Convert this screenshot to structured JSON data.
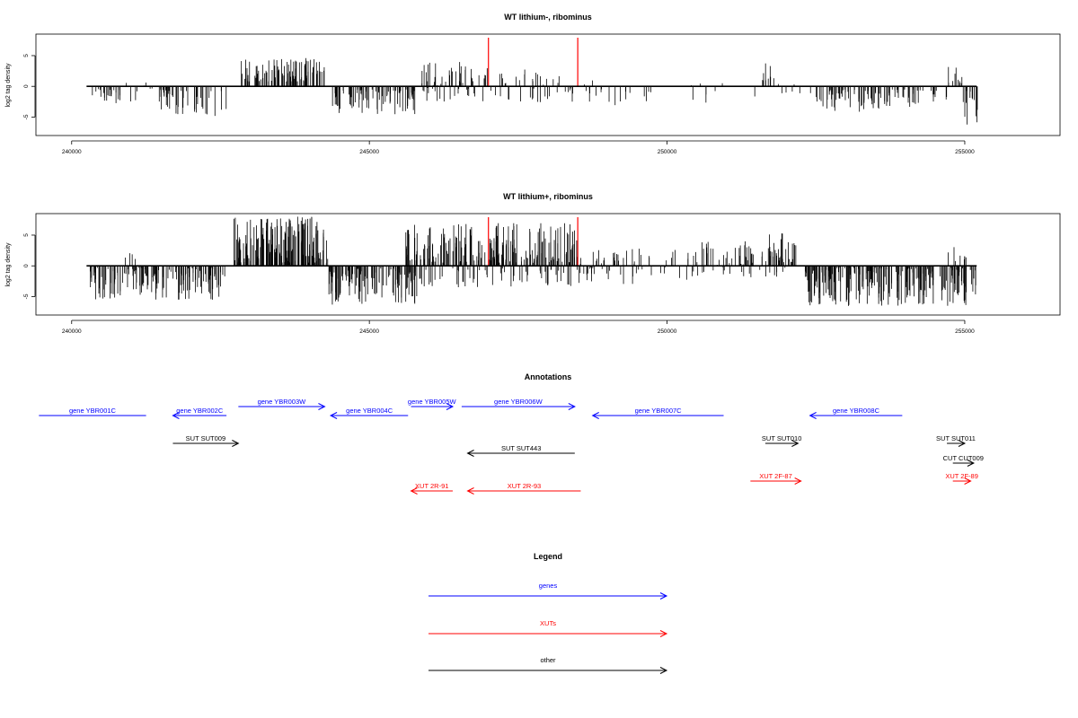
{
  "chart_data": [
    {
      "type": "bar",
      "title": "WT lithium-, ribominus",
      "xlabel": "",
      "ylabel": "log2 tag density",
      "xlim": [
        239400,
        256600
      ],
      "ylim": [
        -8,
        8.5
      ],
      "x_ticks": [
        240000,
        245000,
        250000,
        255000
      ],
      "x_tick_labels": [
        "240000",
        "245000",
        "250000",
        "255000"
      ],
      "y_ticks": [
        -5,
        0,
        5
      ],
      "y_tick_labels": [
        "-5",
        "0",
        "5"
      ],
      "baseline": {
        "from": 240250,
        "to": 255200,
        "y": 0
      },
      "highlight_positions": [
        247000,
        248500
      ],
      "highlight_color": "#ff0000",
      "bar_color": "#000000",
      "segments": [
        {
          "start": 240300,
          "end": 240900,
          "n": 22,
          "min": -2.8,
          "max": -0.4,
          "seed": 11
        },
        {
          "start": 240900,
          "end": 241500,
          "n": 10,
          "min": -2.5,
          "max": 0.8,
          "seed": 12
        },
        {
          "start": 241450,
          "end": 242600,
          "n": 46,
          "min": -5.0,
          "max": -0.5,
          "seed": 13
        },
        {
          "start": 242850,
          "end": 244250,
          "n": 95,
          "min": 0.8,
          "max": 4.6,
          "seed": 14
        },
        {
          "start": 244350,
          "end": 245800,
          "n": 85,
          "min": -4.6,
          "max": -0.5,
          "seed": 15
        },
        {
          "start": 245800,
          "end": 246800,
          "n": 55,
          "min": -2.5,
          "max": 4.0,
          "seed": 16
        },
        {
          "start": 246800,
          "end": 248500,
          "n": 50,
          "min": -2.8,
          "max": 3.2,
          "seed": 17
        },
        {
          "start": 248500,
          "end": 249500,
          "n": 16,
          "min": -3.5,
          "max": 1.5,
          "seed": 18
        },
        {
          "start": 249500,
          "end": 251500,
          "n": 12,
          "min": -3.0,
          "max": 1.2,
          "seed": 19
        },
        {
          "start": 251550,
          "end": 251800,
          "n": 9,
          "min": 0.6,
          "max": 3.9,
          "seed": 20
        },
        {
          "start": 251800,
          "end": 252500,
          "n": 8,
          "min": -2.0,
          "max": 0.6,
          "seed": 21
        },
        {
          "start": 252500,
          "end": 254700,
          "n": 95,
          "min": -4.2,
          "max": -0.5,
          "seed": 22
        },
        {
          "start": 254700,
          "end": 255000,
          "n": 10,
          "min": 0.5,
          "max": 3.2,
          "seed": 23
        },
        {
          "start": 254950,
          "end": 255220,
          "n": 14,
          "min": -6.5,
          "max": -0.5,
          "seed": 24
        }
      ]
    },
    {
      "type": "bar",
      "title": "WT lithium+, ribominus",
      "xlabel": "",
      "ylabel": "log2 tag density",
      "xlim": [
        239400,
        256600
      ],
      "ylim": [
        -8,
        8.5
      ],
      "x_ticks": [
        240000,
        245000,
        250000,
        255000
      ],
      "x_tick_labels": [
        "240000",
        "245000",
        "250000",
        "255000"
      ],
      "y_ticks": [
        -5,
        0,
        5
      ],
      "y_tick_labels": [
        "-5",
        "0",
        "5"
      ],
      "baseline": {
        "from": 240250,
        "to": 255200,
        "y": 0
      },
      "highlight_positions": [
        247000,
        248500
      ],
      "highlight_color": "#ff0000",
      "bar_color": "#000000",
      "segments": [
        {
          "start": 240300,
          "end": 242600,
          "n": 150,
          "min": -5.6,
          "max": -0.3,
          "seed": 31
        },
        {
          "start": 240900,
          "end": 241200,
          "n": 4,
          "min": 0.4,
          "max": 2.4,
          "seed": 32
        },
        {
          "start": 242700,
          "end": 244300,
          "n": 170,
          "min": 0.5,
          "max": 8.0,
          "seed": 33
        },
        {
          "start": 244300,
          "end": 245800,
          "n": 120,
          "min": -6.5,
          "max": -0.4,
          "seed": 34
        },
        {
          "start": 245600,
          "end": 248500,
          "n": 200,
          "min": 0.5,
          "max": 7.0,
          "seed": 35
        },
        {
          "start": 245800,
          "end": 248500,
          "n": 60,
          "min": -3.5,
          "max": -0.4,
          "seed": 36
        },
        {
          "start": 248500,
          "end": 250500,
          "n": 70,
          "min": -3.0,
          "max": 2.8,
          "seed": 37
        },
        {
          "start": 250500,
          "end": 252200,
          "n": 90,
          "min": -2.0,
          "max": 4.0,
          "seed": 38
        },
        {
          "start": 251700,
          "end": 251950,
          "n": 6,
          "min": 2.0,
          "max": 6.5,
          "seed": 39
        },
        {
          "start": 252300,
          "end": 255000,
          "n": 220,
          "min": -6.6,
          "max": -0.3,
          "seed": 40
        },
        {
          "start": 254700,
          "end": 255050,
          "n": 8,
          "min": 0.4,
          "max": 3.2,
          "seed": 41
        },
        {
          "start": 254950,
          "end": 255220,
          "n": 16,
          "min": -7.4,
          "max": -0.6,
          "seed": 42
        }
      ]
    }
  ],
  "annotations": {
    "title": "Annotations",
    "xlim": [
      239400,
      256600
    ],
    "rows": [
      {
        "label": "gene YBR001C",
        "start": 239450,
        "end": 241250,
        "strand": "-",
        "arrow": false,
        "color": "#0000ff",
        "row": 1
      },
      {
        "label": "gene YBR002C",
        "start": 241700,
        "end": 242600,
        "strand": "-",
        "arrow": true,
        "color": "#0000ff",
        "row": 1
      },
      {
        "label": "gene YBR003W",
        "start": 242800,
        "end": 244250,
        "strand": "+",
        "arrow": true,
        "color": "#0000ff",
        "row": 0
      },
      {
        "label": "gene YBR004C",
        "start": 244350,
        "end": 245650,
        "strand": "-",
        "arrow": true,
        "color": "#0000ff",
        "row": 1
      },
      {
        "label": "gene YBR005W",
        "start": 245700,
        "end": 246400,
        "strand": "+",
        "arrow": true,
        "color": "#0000ff",
        "row": 0
      },
      {
        "label": "gene YBR006W",
        "start": 246550,
        "end": 248450,
        "strand": "+",
        "arrow": true,
        "color": "#0000ff",
        "row": 0
      },
      {
        "label": "gene YBR007C",
        "start": 248750,
        "end": 250950,
        "strand": "-",
        "arrow": true,
        "color": "#0000ff",
        "row": 1
      },
      {
        "label": "gene YBR008C",
        "start": 252400,
        "end": 253950,
        "strand": "-",
        "arrow": true,
        "color": "#0000ff",
        "row": 1
      },
      {
        "label": "SUT SUT009",
        "start": 241700,
        "end": 242800,
        "strand": "+",
        "arrow": true,
        "color": "#000000",
        "row": 2
      },
      {
        "label": "SUT SUT443",
        "start": 246650,
        "end": 248450,
        "strand": "-",
        "arrow": true,
        "color": "#000000",
        "row": 3
      },
      {
        "label": "SUT SUT010",
        "start": 251650,
        "end": 252200,
        "strand": "+",
        "arrow": true,
        "color": "#000000",
        "row": 2
      },
      {
        "label": "SUT SUT011",
        "start": 254700,
        "end": 255000,
        "strand": "+",
        "arrow": true,
        "color": "#000000",
        "row": 2
      },
      {
        "label": "CUT CUT009",
        "start": 254800,
        "end": 255150,
        "strand": "+",
        "arrow": true,
        "color": "#000000",
        "row": 4
      },
      {
        "label": "XUT 2R-91",
        "start": 245700,
        "end": 246400,
        "strand": "-",
        "arrow": true,
        "color": "#ff0000",
        "row": 6
      },
      {
        "label": "XUT 2R-93",
        "start": 246650,
        "end": 248550,
        "strand": "-",
        "arrow": true,
        "color": "#ff0000",
        "row": 6
      },
      {
        "label": "XUT 2F-87",
        "start": 251400,
        "end": 252250,
        "strand": "+",
        "arrow": true,
        "color": "#ff0000",
        "row": 5
      },
      {
        "label": "XUT 2F-89",
        "start": 254800,
        "end": 255100,
        "strand": "+",
        "arrow": true,
        "color": "#ff0000",
        "row": 5
      }
    ]
  },
  "legend": {
    "title": "Legend",
    "items": [
      {
        "label": "genes",
        "color": "#0000ff"
      },
      {
        "label": "XUTs",
        "color": "#ff0000"
      },
      {
        "label": "other",
        "color": "#000000"
      }
    ]
  }
}
